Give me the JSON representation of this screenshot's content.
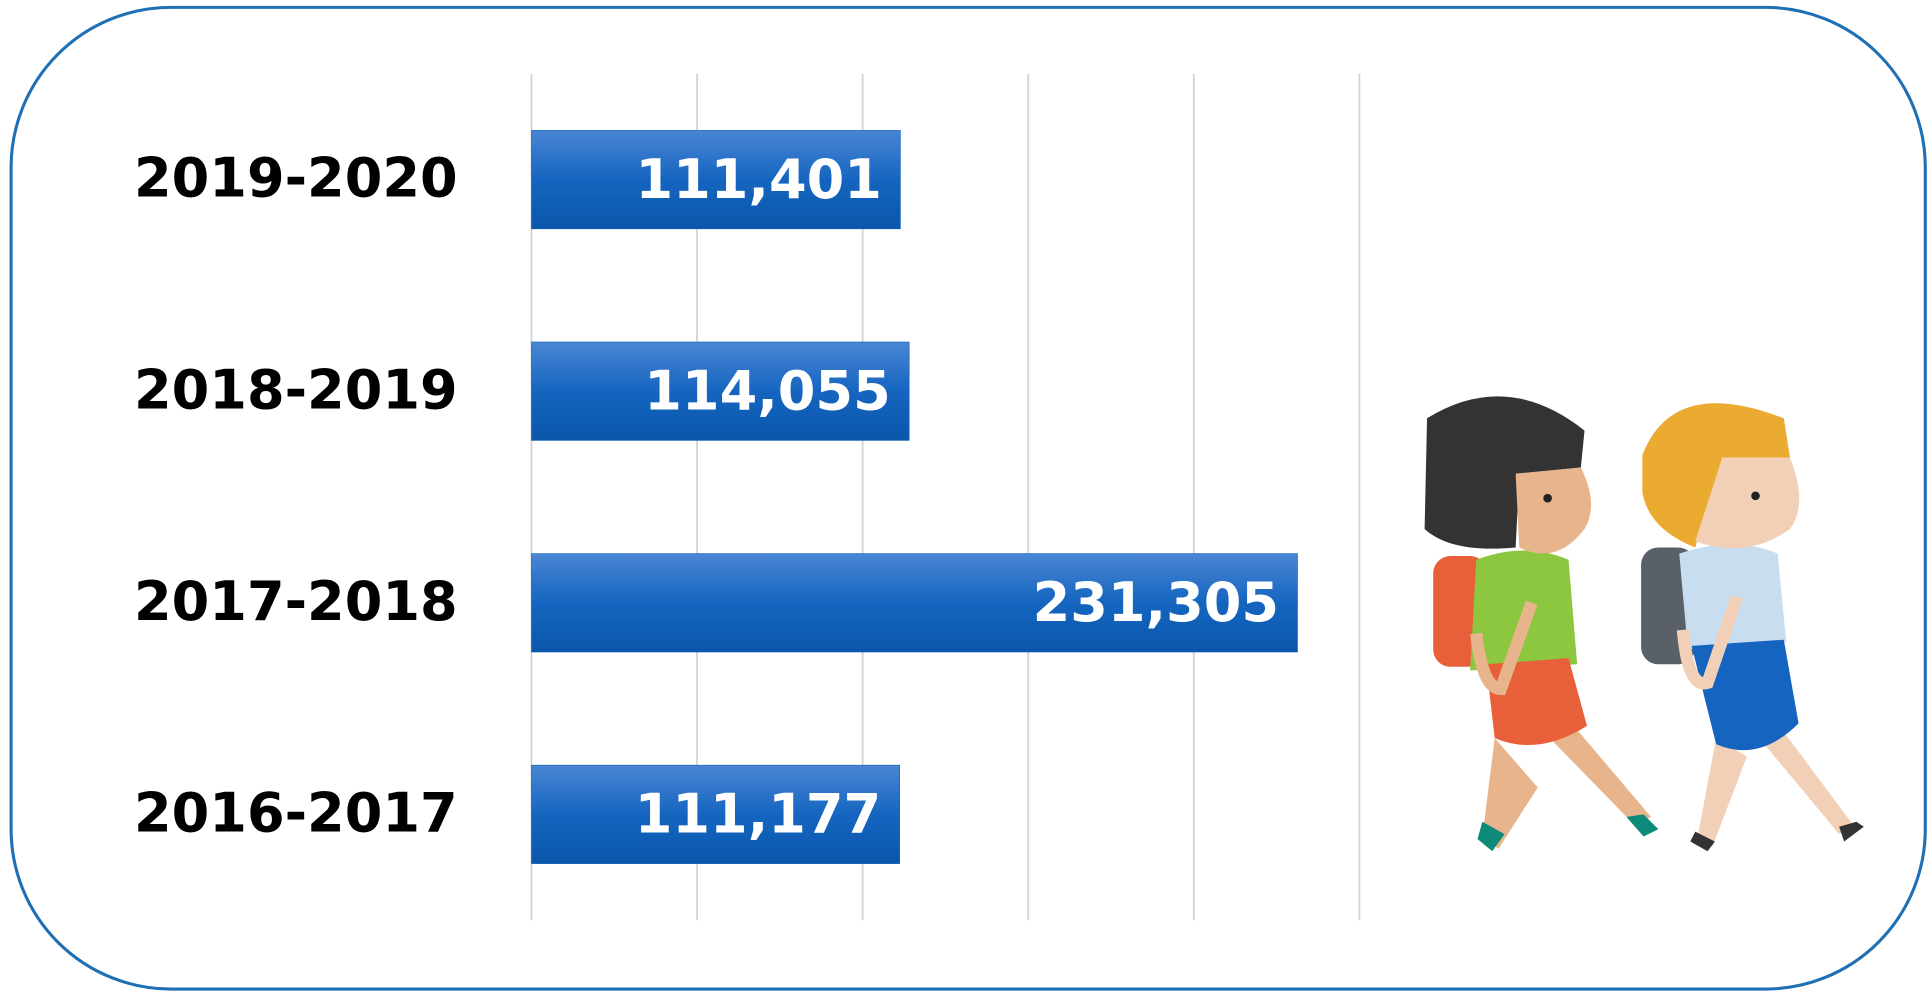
{
  "chart_data": {
    "type": "bar",
    "orientation": "horizontal",
    "categories": [
      "2019-2020",
      "2018-2019",
      "2017-2018",
      "2016-2017"
    ],
    "values": [
      111401,
      114055,
      231305,
      111177
    ],
    "value_labels": [
      "111,401",
      "114,055",
      "231,305",
      "111,177"
    ],
    "color": "#0d5fb8",
    "xlim": [
      0,
      250000
    ],
    "xticks": [
      0,
      50000,
      100000,
      150000,
      200000,
      250000
    ],
    "grid": true
  }
}
